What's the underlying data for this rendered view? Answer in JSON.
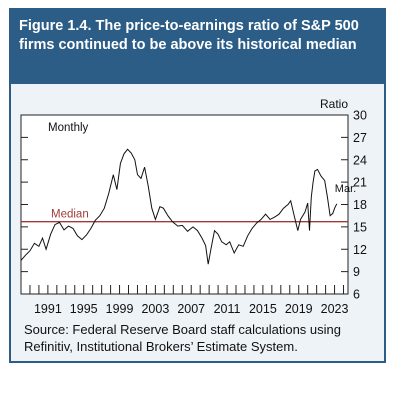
{
  "figure": {
    "title": "Figure 1.4. The price-to-earnings ratio of S&P 500 firms continued to be above its historical median",
    "source": "Source: Federal Reserve Board staff calculations using Refinitiv, Institutional Brokers’ Estimate System."
  },
  "colors": {
    "header": "#2b5d86",
    "background": "#eef3f8",
    "line": "#111111",
    "median": "#9e3b3b"
  },
  "chart_data": {
    "type": "line",
    "title": "Figure 1.4. The price-to-earnings ratio of S&P 500 firms continued to be above its historical median",
    "ylabel": "Ratio",
    "frequency_label": "Monthly",
    "end_label": "Mar.",
    "median_label": "Median",
    "median": 15.7,
    "xlim": [
      1988,
      2024.5
    ],
    "ylim": [
      6,
      30
    ],
    "y_ticks": [
      6,
      9,
      12,
      15,
      18,
      21,
      24,
      27,
      30
    ],
    "x_tick_labels": [
      "1991",
      "1995",
      "1999",
      "2003",
      "2007",
      "2011",
      "2015",
      "2019",
      "2023"
    ],
    "x_tick_positions": [
      1991,
      1995,
      1999,
      2003,
      2007,
      2011,
      2015,
      2019,
      2023
    ],
    "grid": false,
    "series": [
      {
        "values": [
          [
            1988.0,
            10.5
          ],
          [
            1988.5,
            11.2
          ],
          [
            1989.0,
            11.8
          ],
          [
            1989.5,
            12.8
          ],
          [
            1990.0,
            12.4
          ],
          [
            1990.4,
            13.5
          ],
          [
            1990.8,
            12.0
          ],
          [
            1991.3,
            14.0
          ],
          [
            1991.8,
            15.3
          ],
          [
            1992.3,
            15.6
          ],
          [
            1992.8,
            14.6
          ],
          [
            1993.3,
            15.1
          ],
          [
            1993.8,
            14.8
          ],
          [
            1994.3,
            13.8
          ],
          [
            1994.8,
            13.3
          ],
          [
            1995.3,
            13.9
          ],
          [
            1995.8,
            14.8
          ],
          [
            1996.3,
            15.9
          ],
          [
            1996.8,
            16.5
          ],
          [
            1997.3,
            17.5
          ],
          [
            1997.8,
            19.5
          ],
          [
            1998.3,
            22.0
          ],
          [
            1998.7,
            20.0
          ],
          [
            1999.1,
            23.5
          ],
          [
            1999.5,
            24.8
          ],
          [
            1999.9,
            25.4
          ],
          [
            2000.3,
            24.9
          ],
          [
            2000.7,
            24.0
          ],
          [
            2001.0,
            22.0
          ],
          [
            2001.4,
            21.5
          ],
          [
            2001.8,
            23.0
          ],
          [
            2002.2,
            20.5
          ],
          [
            2002.6,
            17.5
          ],
          [
            2003.0,
            16.0
          ],
          [
            2003.5,
            17.7
          ],
          [
            2003.9,
            17.5
          ],
          [
            2004.4,
            16.5
          ],
          [
            2004.9,
            15.7
          ],
          [
            2005.5,
            15.1
          ],
          [
            2006.0,
            15.2
          ],
          [
            2006.6,
            14.4
          ],
          [
            2007.2,
            15.0
          ],
          [
            2007.7,
            14.5
          ],
          [
            2008.2,
            13.5
          ],
          [
            2008.6,
            12.5
          ],
          [
            2008.9,
            10.0
          ],
          [
            2009.2,
            12.0
          ],
          [
            2009.6,
            14.5
          ],
          [
            2010.0,
            14.0
          ],
          [
            2010.4,
            13.0
          ],
          [
            2010.9,
            12.6
          ],
          [
            2011.3,
            13.0
          ],
          [
            2011.8,
            11.5
          ],
          [
            2012.3,
            12.6
          ],
          [
            2012.8,
            12.4
          ],
          [
            2013.3,
            13.8
          ],
          [
            2013.8,
            14.8
          ],
          [
            2014.3,
            15.5
          ],
          [
            2014.8,
            16.0
          ],
          [
            2015.3,
            16.7
          ],
          [
            2015.8,
            16.0
          ],
          [
            2016.3,
            16.3
          ],
          [
            2016.8,
            16.7
          ],
          [
            2017.3,
            17.5
          ],
          [
            2017.8,
            18.0
          ],
          [
            2018.1,
            18.5
          ],
          [
            2018.5,
            16.5
          ],
          [
            2018.9,
            14.5
          ],
          [
            2019.2,
            16.0
          ],
          [
            2019.7,
            17.0
          ],
          [
            2020.0,
            18.2
          ],
          [
            2020.2,
            14.5
          ],
          [
            2020.4,
            19.0
          ],
          [
            2020.6,
            21.0
          ],
          [
            2020.8,
            22.5
          ],
          [
            2021.1,
            22.7
          ],
          [
            2021.5,
            21.8
          ],
          [
            2021.9,
            21.2
          ],
          [
            2022.2,
            19.0
          ],
          [
            2022.5,
            16.5
          ],
          [
            2022.8,
            16.8
          ],
          [
            2023.0,
            17.5
          ],
          [
            2023.25,
            18.1
          ]
        ]
      }
    ]
  }
}
